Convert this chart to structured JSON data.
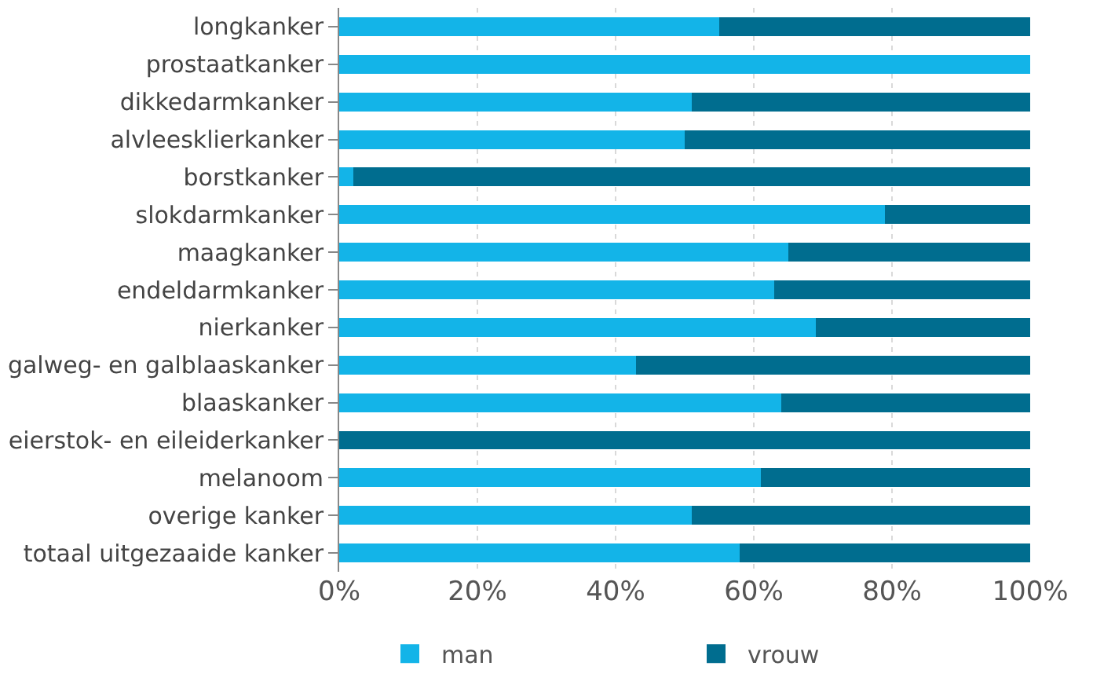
{
  "chart_data": {
    "type": "bar",
    "orientation": "horizontal",
    "stacked": true,
    "categories": [
      "longkanker",
      "prostaatkanker",
      "dikkedarmkanker",
      "alvleesklierkanker",
      "borstkanker",
      "slokdarmkanker",
      "maagkanker",
      "endeldarmkanker",
      "nierkanker",
      "galweg- en galblaaskanker",
      "blaaskanker",
      "eierstok- en eileiderkanker",
      "melanoom",
      "overige kanker",
      "totaal uitgezaaide kanker"
    ],
    "series": [
      {
        "name": "man",
        "color": "#13b4e8",
        "values": [
          55,
          100,
          51,
          50,
          2,
          79,
          65,
          63,
          69,
          43,
          64,
          0,
          61,
          51,
          58
        ]
      },
      {
        "name": "vrouw",
        "color": "#006d8f",
        "values": [
          45,
          0,
          49,
          50,
          98,
          21,
          35,
          37,
          31,
          57,
          36,
          100,
          39,
          49,
          42
        ]
      }
    ],
    "xlim": [
      0,
      100
    ],
    "xticks": [
      {
        "value": 0,
        "label": "0%"
      },
      {
        "value": 20,
        "label": "20%"
      },
      {
        "value": 40,
        "label": "40%"
      },
      {
        "value": 60,
        "label": "60%"
      },
      {
        "value": 80,
        "label": "80%"
      },
      {
        "value": 100,
        "label": "100%"
      }
    ],
    "grid": "x",
    "legend": "bottom"
  }
}
